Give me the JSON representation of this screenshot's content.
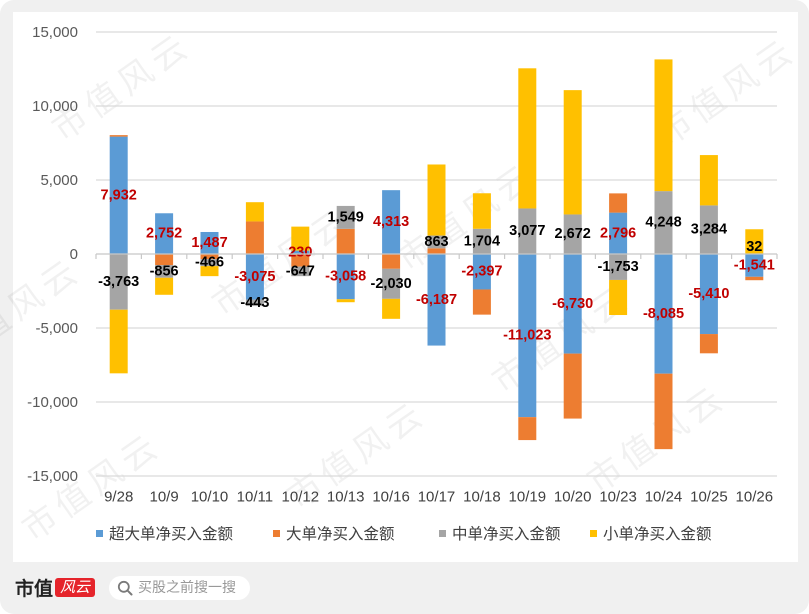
{
  "page": {
    "watermark": "市值风云"
  },
  "chart_data": {
    "type": "bar",
    "stacked": true,
    "title": "",
    "xlabel": "",
    "ylabel": "",
    "ylim": [
      -15000,
      15000
    ],
    "grid": true,
    "legend_position": "bottom",
    "categories": [
      "9/28",
      "10/9",
      "10/10",
      "10/11",
      "10/12",
      "10/13",
      "10/16",
      "10/17",
      "10/18",
      "10/19",
      "10/20",
      "10/23",
      "10/24",
      "10/25",
      "10/26"
    ],
    "yticks": [
      15000,
      10000,
      5000,
      0,
      -5000,
      -10000,
      -15000
    ],
    "ytick_labels": [
      "15,000",
      "10,000",
      "5,000",
      "0",
      "-5,000",
      "-10,000",
      "-15,000"
    ],
    "series": [
      {
        "name": "超大单净买入金额",
        "color": "#5B9BD5",
        "label_color": "#C00000",
        "values": [
          7932,
          2752,
          1487,
          -3075,
          230,
          -3058,
          4313,
          -6187,
          -2397,
          -11023,
          -6730,
          2796,
          -8085,
          -5410,
          -1541
        ],
        "labels": [
          "7,932",
          "2,752",
          "1,487",
          "-3,075",
          "230",
          "-3,058",
          "4,313",
          "-6,187",
          "-2,397",
          "-11,023",
          "-6,730",
          "2,796",
          "-8,085",
          "-5,410",
          "-1,541"
        ]
      },
      {
        "name": "大单净买入金额",
        "color": "#ED7D31",
        "values": [
          100,
          -750,
          -350,
          2200,
          -850,
          1700,
          -1000,
          385,
          -1700,
          -1550,
          -4390,
          1300,
          -5100,
          -1300,
          -230
        ]
      },
      {
        "name": "中单净买入金额",
        "color": "#A5A5A5",
        "label_color": "#000000",
        "values": [
          -3763,
          -856,
          -466,
          -443,
          -647,
          1549,
          -2030,
          863,
          1704,
          3077,
          2672,
          -1753,
          4248,
          3284,
          32
        ],
        "labels": [
          "-3,763",
          "-856",
          "-466",
          "-443",
          "-647",
          "1,549",
          "-2,030",
          "863",
          "1,704",
          "3,077",
          "2,672",
          "-1,753",
          "4,248",
          "3,284",
          "32"
        ]
      },
      {
        "name": "小单净买入金额",
        "color": "#FFC000",
        "values": [
          -4300,
          -1150,
          -680,
          1300,
          1620,
          -200,
          -1350,
          4800,
          2400,
          9470,
          8400,
          -2370,
          8900,
          3400,
          1640
        ]
      }
    ]
  },
  "footer": {
    "logo_text": "市值",
    "logo_badge": "风云",
    "search_placeholder": "买股之前搜一搜"
  }
}
